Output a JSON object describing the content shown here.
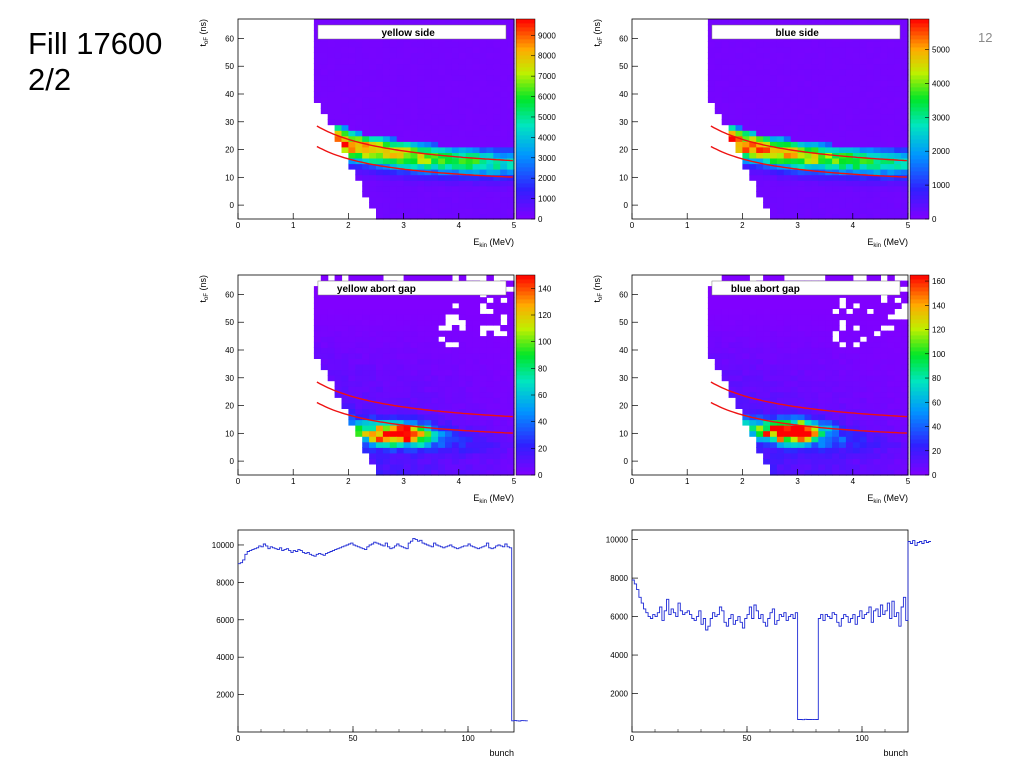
{
  "slide": {
    "title_line1": "Fill 17600",
    "title_line2": "2/2",
    "page_number": "12"
  },
  "colors": {
    "curve": "#ee1111",
    "hist_line": "#1f2bd6",
    "background_bin": "#8a1cff"
  },
  "chart_data": [
    {
      "id": "heat-yellow-side",
      "type": "heatmap",
      "title": "yellow side",
      "xlabel": "E",
      "xlabel_sub": "kin",
      "xlabel_unit": " (MeV)",
      "ylabel": "t",
      "ylabel_sub": "oF",
      "ylabel_unit": " (ns)",
      "xlim": [
        0,
        5
      ],
      "ylim": [
        -5,
        67
      ],
      "xticks": [
        "0",
        "1",
        "2",
        "3",
        "4",
        "5"
      ],
      "yticks": [
        "0",
        "10",
        "20",
        "30",
        "40",
        "50",
        "60"
      ],
      "zmax": 9800,
      "colorbar_ticks": [
        "0",
        "1000",
        "2000",
        "3000",
        "4000",
        "5000",
        "6000",
        "7000",
        "8000",
        "9000"
      ],
      "bin_xmin": 1.43,
      "band": {
        "A": 18,
        "n": 0.95,
        "c": 5.5,
        "width": 6.5,
        "peak_falloff": 0.55
      },
      "curves": [
        {
          "A": 25.5,
          "n": 0.9,
          "c": 10
        },
        {
          "A": 22,
          "n": 1.05,
          "c": 6
        }
      ]
    },
    {
      "id": "heat-blue-side",
      "type": "heatmap",
      "title": "blue side",
      "xlabel": "E",
      "xlabel_sub": "kin",
      "xlabel_unit": " (MeV)",
      "ylabel": "t",
      "ylabel_sub": "oF",
      "ylabel_unit": " (ns)",
      "xlim": [
        0,
        5
      ],
      "ylim": [
        -5,
        67
      ],
      "xticks": [
        "0",
        "1",
        "2",
        "3",
        "4",
        "5"
      ],
      "yticks": [
        "0",
        "10",
        "20",
        "30",
        "40",
        "50",
        "60"
      ],
      "zmax": 5900,
      "colorbar_ticks": [
        "0",
        "1000",
        "2000",
        "3000",
        "4000",
        "5000"
      ],
      "bin_xmin": 1.43,
      "band": {
        "A": 18,
        "n": 0.95,
        "c": 5.5,
        "width": 6.5,
        "peak_falloff": 0.55
      },
      "curves": [
        {
          "A": 25.5,
          "n": 0.9,
          "c": 10
        },
        {
          "A": 22,
          "n": 1.05,
          "c": 6
        }
      ]
    },
    {
      "id": "heat-yellow-abort",
      "type": "heatmap",
      "title": "yellow abort gap",
      "xlabel": "E",
      "xlabel_sub": "kin",
      "xlabel_unit": " (MeV)",
      "ylabel": "t",
      "ylabel_sub": "oF",
      "ylabel_unit": " (ns)",
      "xlim": [
        0,
        5
      ],
      "ylim": [
        -5,
        67
      ],
      "xticks": [
        "0",
        "1",
        "2",
        "3",
        "4",
        "5"
      ],
      "yticks": [
        "0",
        "10",
        "20",
        "30",
        "40",
        "50",
        "60"
      ],
      "zmax": 150,
      "colorbar_ticks": [
        "0",
        "20",
        "40",
        "60",
        "80",
        "100",
        "120",
        "140"
      ],
      "bin_xmin": 1.43,
      "abort": true,
      "hotspot": {
        "x": 2.9,
        "y": 10,
        "sx": 0.4,
        "sy": 2.6
      },
      "curves": [
        {
          "A": 25.5,
          "n": 0.9,
          "c": 10
        },
        {
          "A": 22,
          "n": 1.05,
          "c": 6
        }
      ]
    },
    {
      "id": "heat-blue-abort",
      "type": "heatmap",
      "title": "blue abort gap",
      "xlabel": "E",
      "xlabel_sub": "kin",
      "xlabel_unit": " (MeV)",
      "ylabel": "t",
      "ylabel_sub": "oF",
      "ylabel_unit": " (ns)",
      "xlim": [
        0,
        5
      ],
      "ylim": [
        -5,
        67
      ],
      "xticks": [
        "0",
        "1",
        "2",
        "3",
        "4",
        "5"
      ],
      "yticks": [
        "0",
        "10",
        "20",
        "30",
        "40",
        "50",
        "60"
      ],
      "zmax": 165,
      "colorbar_ticks": [
        "0",
        "20",
        "40",
        "60",
        "80",
        "100",
        "120",
        "140",
        "160"
      ],
      "bin_xmin": 1.43,
      "abort": true,
      "hotspot": {
        "x": 2.9,
        "y": 11,
        "sx": 0.4,
        "sy": 2.6
      },
      "curves": [
        {
          "A": 25.5,
          "n": 0.9,
          "c": 10
        },
        {
          "A": 22,
          "n": 1.05,
          "c": 6
        }
      ]
    },
    {
      "id": "hist-yellow",
      "type": "line",
      "step": true,
      "xlabel": "bunch",
      "xlim": [
        0,
        120
      ],
      "ylim": [
        0,
        10800
      ],
      "xticks": [
        "0",
        "50",
        "100"
      ],
      "yticks": [
        "2000",
        "4000",
        "6000",
        "8000",
        "10000"
      ],
      "values": [
        9000,
        9050,
        9200,
        9500,
        9650,
        9700,
        9750,
        9800,
        9850,
        9950,
        9900,
        10050,
        9950,
        9800,
        9900,
        9850,
        9800,
        9750,
        9850,
        9700,
        9750,
        9800,
        9700,
        9600,
        9700,
        9650,
        9750,
        9700,
        9600,
        9550,
        9600,
        9500,
        9450,
        9400,
        9500,
        9550,
        9500,
        9450,
        9550,
        9600,
        9650,
        9700,
        9750,
        9800,
        9850,
        9900,
        9950,
        10000,
        10050,
        10100,
        10000,
        9950,
        9900,
        9850,
        9800,
        9750,
        9900,
        10000,
        10050,
        10150,
        10100,
        10050,
        10000,
        9950,
        10100,
        9900,
        9800,
        9850,
        9950,
        10050,
        9950,
        9900,
        9850,
        9800,
        10100,
        10200,
        10350,
        10300,
        10200,
        10250,
        10100,
        10050,
        10000,
        9950,
        9900,
        10100,
        10000,
        9950,
        9900,
        9850,
        9900,
        9950,
        10000,
        9900,
        9850,
        9800,
        9850,
        9900,
        9950,
        9950,
        10050,
        9950,
        9900,
        9850,
        9800,
        9850,
        9900,
        9950,
        10100,
        9850,
        9800,
        9850,
        9950,
        10000,
        9950,
        9900,
        10050,
        9900,
        9850,
        600,
        620,
        600,
        590,
        610,
        605,
        600
      ]
    },
    {
      "id": "hist-blue",
      "type": "line",
      "step": true,
      "xlabel": "bunch",
      "xlim": [
        0,
        120
      ],
      "ylim": [
        0,
        10500
      ],
      "xticks": [
        "0",
        "50",
        "100"
      ],
      "yticks": [
        "2000",
        "4000",
        "6000",
        "8000",
        "10000"
      ],
      "values": [
        7900,
        7700,
        7400,
        7000,
        6700,
        6400,
        6200,
        6000,
        5900,
        6100,
        6000,
        6200,
        6500,
        5800,
        6300,
        6900,
        6100,
        6400,
        6200,
        6000,
        6700,
        6300,
        6100,
        6200,
        6300,
        6100,
        5900,
        5800,
        6000,
        6300,
        5600,
        5900,
        5300,
        5500,
        5900,
        6200,
        6000,
        6100,
        6500,
        6300,
        5700,
        5500,
        5900,
        6100,
        5600,
        5800,
        6000,
        5700,
        5400,
        5900,
        6100,
        6500,
        5900,
        6600,
        6300,
        5900,
        6100,
        5700,
        5500,
        5900,
        6200,
        6400,
        5600,
        5800,
        6100,
        6000,
        6200,
        5800,
        6000,
        6100,
        5900,
        6200,
        650,
        650,
        640,
        660,
        650,
        650,
        645,
        655,
        650,
        5900,
        6100,
        5800,
        6100,
        6000,
        5900,
        6200,
        6100,
        5700,
        5500,
        5900,
        6100,
        6000,
        5700,
        5900,
        6100,
        5600,
        6000,
        6300,
        5900,
        6100,
        6200,
        6500,
        5700,
        6300,
        6400,
        6000,
        6600,
        6100,
        6300,
        6700,
        5900,
        6800,
        6000,
        6200,
        5500,
        6500,
        7000,
        5800,
        9900,
        9800,
        9950,
        9700,
        9850,
        9900,
        9800,
        9950,
        9850,
        9900
      ]
    }
  ]
}
